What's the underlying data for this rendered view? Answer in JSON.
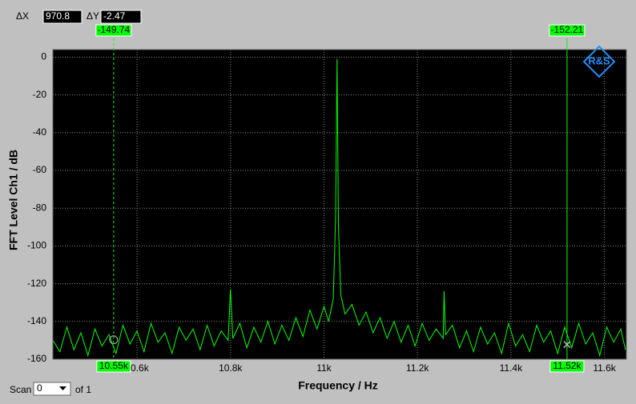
{
  "chart_data": {
    "type": "line",
    "x_label": "Frequency / Hz",
    "y_label": "FFT Level Ch1 / dB",
    "xlim": [
      10420,
      11647
    ],
    "ylim": [
      -160,
      4
    ],
    "xticks": [
      {
        "value": 10600,
        "label": "10.6k"
      },
      {
        "value": 10800,
        "label": "10.8k"
      },
      {
        "value": 11000,
        "label": "11k"
      },
      {
        "value": 11200,
        "label": "11.2k"
      },
      {
        "value": 11400,
        "label": "11.4k"
      },
      {
        "value": 11600,
        "label": "11.6k"
      }
    ],
    "yticks": [
      0,
      -20,
      -40,
      -60,
      -80,
      -100,
      -120,
      -140,
      -160
    ],
    "grid": true,
    "series": [
      {
        "color": "#00ff00",
        "x": [
          10420,
          10435,
          10450,
          10465,
          10480,
          10495,
          10510,
          10525,
          10540,
          10555,
          10570,
          10585,
          10600,
          10615,
          10630,
          10645,
          10660,
          10675,
          10690,
          10705,
          10720,
          10735,
          10750,
          10765,
          10780,
          10795,
          10800,
          10805,
          10820,
          10835,
          10850,
          10865,
          10880,
          10895,
          10910,
          10925,
          10940,
          10955,
          10970,
          10985,
          11000,
          11010,
          11020,
          11025,
          11028,
          11031,
          11036,
          11045,
          11060,
          11075,
          11090,
          11105,
          11120,
          11135,
          11150,
          11165,
          11180,
          11195,
          11210,
          11225,
          11240,
          11255,
          11257,
          11260,
          11275,
          11290,
          11305,
          11320,
          11335,
          11350,
          11365,
          11380,
          11395,
          11410,
          11425,
          11440,
          11455,
          11470,
          11485,
          11500,
          11515,
          11530,
          11545,
          11560,
          11575,
          11590,
          11605,
          11620,
          11635,
          11645
        ],
        "values": [
          -150,
          -156,
          -143,
          -155,
          -146,
          -158,
          -144,
          -153,
          -147,
          -157,
          -142,
          -152,
          -145,
          -156,
          -141,
          -151,
          -146,
          -157,
          -143,
          -150,
          -144,
          -155,
          -142,
          -153,
          -145,
          -150,
          -123,
          -149,
          -141,
          -154,
          -143,
          -151,
          -140,
          -152,
          -142,
          -150,
          -138,
          -148,
          -134,
          -144,
          -132,
          -140,
          -128,
          -84,
          -1,
          -90,
          -126,
          -136,
          -131,
          -142,
          -135,
          -146,
          -138,
          -149,
          -140,
          -151,
          -142,
          -153,
          -141,
          -150,
          -144,
          -149,
          -124,
          -147,
          -142,
          -154,
          -145,
          -156,
          -143,
          -152,
          -146,
          -157,
          -141,
          -153,
          -147,
          -156,
          -142,
          -151,
          -145,
          -157,
          -143,
          -154,
          -141,
          -152,
          -146,
          -158,
          -143,
          -151,
          -144,
          -155
        ]
      }
    ],
    "markers": [
      {
        "x": {
          "value": 10550,
          "label": "10.55k"
        },
        "y": -149.74,
        "line": "dashed",
        "symbol": "circle"
      },
      {
        "x": {
          "value": 11520,
          "label": "11.52k"
        },
        "y": -152.21,
        "line": "solid",
        "symbol": "cross"
      }
    ],
    "delta_x_label": "ΔX",
    "delta_x": 970.8,
    "delta_y_label": "ΔY",
    "delta_y": -2.47,
    "scan_label": "Scan",
    "scan_value": "0",
    "scan_of": "of 1"
  }
}
